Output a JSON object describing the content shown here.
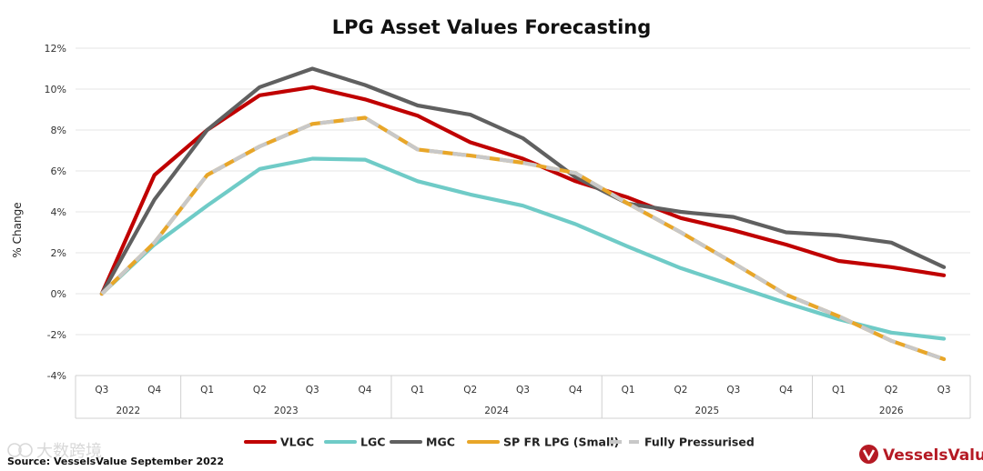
{
  "chart_data": {
    "type": "line",
    "title": "LPG Asset Values Forecasting",
    "ylabel": "% Change",
    "xlabel": "",
    "ylim": [
      -4,
      12
    ],
    "yticks": [
      -4,
      -2,
      0,
      2,
      4,
      6,
      8,
      10,
      12
    ],
    "ytick_labels": [
      "-4%",
      "-2%",
      "0%",
      "2%",
      "4%",
      "6%",
      "8%",
      "10%",
      "12%"
    ],
    "grid": true,
    "legend_position": "bottom",
    "categories": [
      "Q3",
      "Q4",
      "Q1",
      "Q2",
      "Q3",
      "Q4",
      "Q1",
      "Q2",
      "Q3",
      "Q4",
      "Q1",
      "Q2",
      "Q3",
      "Q4",
      "Q1",
      "Q2",
      "Q3"
    ],
    "years": [
      {
        "label": "2022",
        "span": 2
      },
      {
        "label": "2023",
        "span": 4
      },
      {
        "label": "2024",
        "span": 4
      },
      {
        "label": "2025",
        "span": 4
      },
      {
        "label": "2026",
        "span": 3
      }
    ],
    "series": [
      {
        "name": "VLGC",
        "color": "#c00000",
        "dashed": false,
        "values": [
          0,
          5.8,
          8.0,
          9.7,
          10.1,
          9.5,
          8.7,
          7.4,
          6.6,
          5.5,
          4.7,
          3.7,
          3.1,
          2.4,
          1.6,
          1.3,
          0.9
        ]
      },
      {
        "name": "LGC",
        "color": "#6fcbc7",
        "dashed": false,
        "values": [
          0,
          2.4,
          4.3,
          6.1,
          6.6,
          6.55,
          5.5,
          4.85,
          4.3,
          3.4,
          2.3,
          1.25,
          0.4,
          -0.45,
          -1.25,
          -1.9,
          -2.2
        ]
      },
      {
        "name": "MGC",
        "color": "#606060",
        "dashed": false,
        "values": [
          0,
          4.6,
          8.0,
          10.1,
          11.0,
          10.2,
          9.2,
          8.75,
          7.6,
          5.7,
          4.4,
          4.0,
          3.75,
          3.0,
          2.85,
          2.5,
          1.3
        ]
      },
      {
        "name": "SP FR LPG (Small)",
        "color": "#e8a628",
        "dashed": false,
        "values": [
          0,
          2.5,
          5.8,
          7.2,
          8.3,
          8.6,
          7.05,
          6.75,
          6.4,
          5.9,
          4.4,
          3.0,
          1.5,
          -0.05,
          -1.1,
          -2.3,
          -3.2
        ]
      },
      {
        "name": "Fully Pressurised",
        "color": "#c8c8c8",
        "dashed": true,
        "values": [
          0,
          2.5,
          5.8,
          7.2,
          8.3,
          8.6,
          7.05,
          6.75,
          6.4,
          5.9,
          4.4,
          3.0,
          1.5,
          -0.05,
          -1.1,
          -2.3,
          -3.2
        ]
      }
    ]
  },
  "footer": {
    "source": "Source: VesselsValue September 2022",
    "brand": "VesselsValue",
    "watermark": "大数跨境"
  },
  "colors": {
    "brand": "#b51a24",
    "gridline": "#e6e6e6",
    "axis": "#d0d0d0"
  },
  "icons": {
    "brand_logo": "vesselsvalue-logo-icon",
    "watermark_logo": "watermark-logo-icon"
  }
}
